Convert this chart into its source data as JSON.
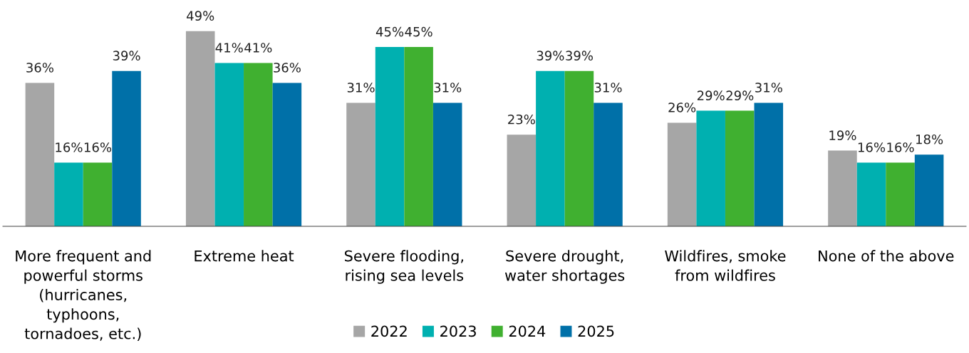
{
  "chart_data": {
    "type": "bar",
    "categories": [
      "More frequent and\npowerful storms\n(hurricanes,\ntyphoons,\ntornadoes, etc.)",
      "Extreme heat",
      "Severe flooding,\nrising sea levels",
      "Severe drought,\nwater shortages",
      "Wildfires, smoke\nfrom wildfires",
      "None of the above"
    ],
    "series": [
      {
        "name": "2022",
        "color": "#a6a6a6",
        "values": [
          36,
          49,
          31,
          23,
          26,
          19
        ],
        "value_labels": [
          "36%",
          "49%",
          "31%",
          "23%",
          "26%",
          "19%"
        ]
      },
      {
        "name": "2023",
        "color": "#00b0b0",
        "values": [
          16,
          41,
          45,
          39,
          29,
          16
        ],
        "value_labels": [
          "16%",
          "41%",
          "45%",
          "39%",
          "29%",
          "16%"
        ]
      },
      {
        "name": "2024",
        "color": "#40b030",
        "values": [
          16,
          41,
          45,
          39,
          29,
          16
        ],
        "value_labels": [
          "16%",
          "41%",
          "45%",
          "39%",
          "29%",
          "16%"
        ]
      },
      {
        "name": "2025",
        "color": "#0070a8",
        "values": [
          39,
          36,
          31,
          31,
          31,
          18
        ],
        "value_labels": [
          "39%",
          "36%",
          "31%",
          "31%",
          "31%",
          "18%"
        ]
      }
    ],
    "legend": "bottom",
    "grid": false
  }
}
